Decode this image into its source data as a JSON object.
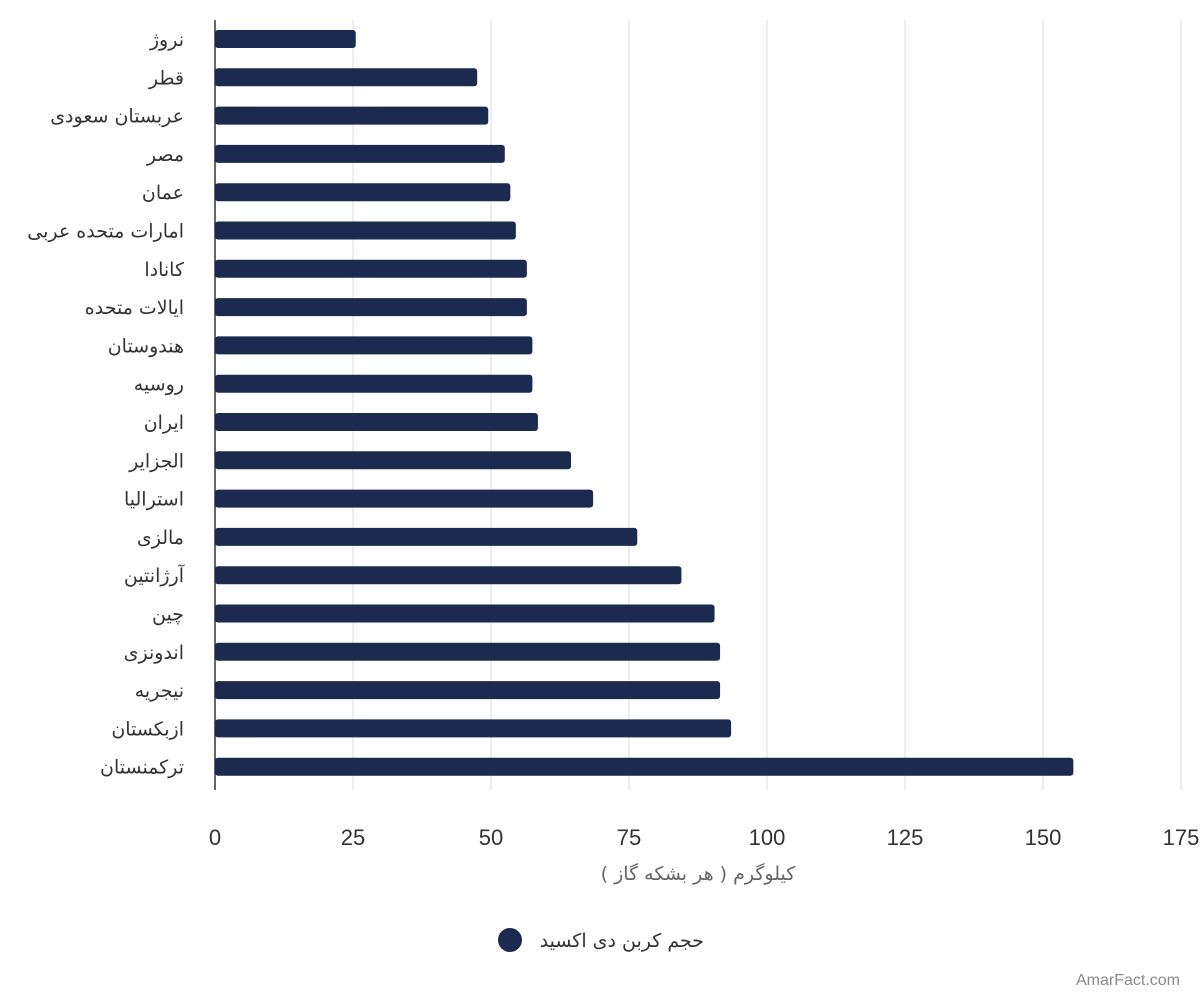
{
  "chart_data": {
    "type": "bar",
    "orientation": "horizontal",
    "categories": [
      "نروژ",
      "قطر",
      "عربستان سعودی",
      "مصر",
      "عمان",
      "امارات متحده عربی",
      "کانادا",
      "ایالات متحده",
      "هندوستان",
      "روسیه",
      "ایران",
      "الجزایر",
      "استرالیا",
      "مالزی",
      "آرژانتین",
      "چین",
      "اندونزی",
      "نیجریه",
      "ازبکستان",
      "ترکمنستان"
    ],
    "series": [
      {
        "name": "حجم کربن دی اکسید",
        "values": [
          25.5,
          47.5,
          49.5,
          52.5,
          53.5,
          54.5,
          56.5,
          56.5,
          57.5,
          57.5,
          58.5,
          64.5,
          68.5,
          76.5,
          84.5,
          90.5,
          91.5,
          91.5,
          93.5,
          155.5
        ]
      }
    ],
    "xlabel": "کیلوگرم ( هر بشکه گاز )",
    "ylabel": "",
    "xlim": [
      0,
      175
    ],
    "xticks": [
      0,
      25,
      50,
      75,
      100,
      125,
      150,
      175
    ],
    "grid": "vertical",
    "legend_position": "bottom-center",
    "bar_color": "#1b2a4e"
  },
  "watermark": "AmarFact.com"
}
